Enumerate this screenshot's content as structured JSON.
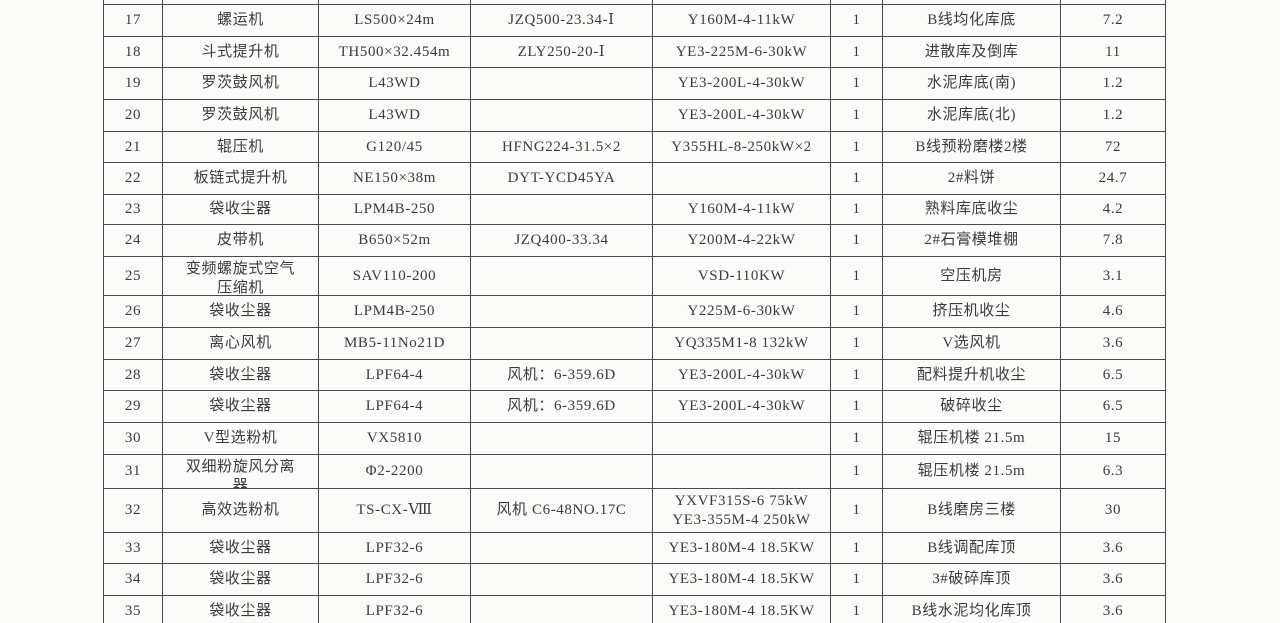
{
  "page": {
    "background": "#fbfbf9",
    "border_color": "#4a4a4a",
    "text_color": "#3b3b3b"
  },
  "table": {
    "cell_keys": [
      "seq",
      "name",
      "model",
      "reducer",
      "motor",
      "qty",
      "location",
      "power"
    ],
    "rows": [
      {
        "seq": "17",
        "name": "螺运机",
        "model": "LS500×24m",
        "reducer": "JZQ500-23.34-Ⅰ",
        "motor": "Y160M-4-11kW",
        "qty": "1",
        "location": "B线均化库底",
        "power": "7.2"
      },
      {
        "seq": "18",
        "name": "斗式提升机",
        "model": "TH500×32.454m",
        "reducer": "ZLY250-20-Ⅰ",
        "motor": "YE3-225M-6-30kW",
        "qty": "1",
        "location": "进散库及倒库",
        "power": "11"
      },
      {
        "seq": "19",
        "name": "罗茨鼓风机",
        "model": "L43WD",
        "reducer": "",
        "motor": "YE3-200L-4-30kW",
        "qty": "1",
        "location": "水泥库底(南)",
        "power": "1.2"
      },
      {
        "seq": "20",
        "name": "罗茨鼓风机",
        "model": "L43WD",
        "reducer": "",
        "motor": "YE3-200L-4-30kW",
        "qty": "1",
        "location": "水泥库底(北)",
        "power": "1.2"
      },
      {
        "seq": "21",
        "name": "辊压机",
        "model": "G120/45",
        "reducer": "HFNG224-31.5×2",
        "motor": "Y355HL-8-250kW×2",
        "qty": "1",
        "location": "B线预粉磨楼2楼",
        "power": "72"
      },
      {
        "seq": "22",
        "name": "板链式提升机",
        "model": "NE150×38m",
        "reducer": "DYT-YCD45YA",
        "motor": "",
        "qty": "1",
        "location": "2#料饼",
        "power": "24.7"
      },
      {
        "seq": "23",
        "name": "袋收尘器",
        "model": "LPM4B-250",
        "reducer": "",
        "motor": "Y160M-4-11kW",
        "qty": "1",
        "location": "熟料库底收尘",
        "power": "4.2"
      },
      {
        "seq": "24",
        "name": "皮带机",
        "model": "B650×52m",
        "reducer": "JZQ400-33.34",
        "motor": "Y200M-4-22kW",
        "qty": "1",
        "location": "2#石膏模堆棚",
        "power": "7.8"
      },
      {
        "seq": "25",
        "name": [
          "变频螺旋式空气",
          "压缩机"
        ],
        "model": "SAV110-200",
        "reducer": "",
        "motor": "VSD-110KW",
        "qty": "1",
        "location": "空压机房",
        "power": "3.1"
      },
      {
        "seq": "26",
        "name": "袋收尘器",
        "model": "LPM4B-250",
        "reducer": "",
        "motor": "Y225M-6-30kW",
        "qty": "1",
        "location": "挤压机收尘",
        "power": "4.6"
      },
      {
        "seq": "27",
        "name": "离心风机",
        "model": "MB5-11No21D",
        "reducer": "",
        "motor": "YQ335M1-8 132kW",
        "qty": "1",
        "location": "V选风机",
        "power": "3.6"
      },
      {
        "seq": "28",
        "name": "袋收尘器",
        "model": "LPF64-4",
        "reducer": "风机：6-359.6D",
        "motor": "YE3-200L-4-30kW",
        "qty": "1",
        "location": "配料提升机收尘",
        "power": "6.5"
      },
      {
        "seq": "29",
        "name": "袋收尘器",
        "model": "LPF64-4",
        "reducer": "风机：6-359.6D",
        "motor": "YE3-200L-4-30kW",
        "qty": "1",
        "location": "破碎收尘",
        "power": "6.5"
      },
      {
        "seq": "30",
        "name": "V型选粉机",
        "model": "VX5810",
        "reducer": "",
        "motor": "",
        "qty": "1",
        "location": "辊压机楼 21.5m",
        "power": "15"
      },
      {
        "seq": "31",
        "name": [
          "双细粉旋风分离",
          "器"
        ],
        "model": "Φ2-2200",
        "reducer": "",
        "motor": "",
        "qty": "1",
        "location": "辊压机楼 21.5m",
        "power": "6.3"
      },
      {
        "seq": "32",
        "name": "高效选粉机",
        "model": "TS-CX-Ⅷ",
        "reducer": "风机 C6-48NO.17C",
        "motor": [
          "YXVF315S-6 75kW",
          "YE3-355M-4 250kW"
        ],
        "qty": "1",
        "location": "B线磨房三楼",
        "power": "30"
      },
      {
        "seq": "33",
        "name": "袋收尘器",
        "model": "LPF32-6",
        "reducer": "",
        "motor": "YE3-180M-4 18.5KW",
        "qty": "1",
        "location": "B线调配库顶",
        "power": "3.6"
      },
      {
        "seq": "34",
        "name": "袋收尘器",
        "model": "LPF32-6",
        "reducer": "",
        "motor": "YE3-180M-4 18.5KW",
        "qty": "1",
        "location": "3#破碎库顶",
        "power": "3.6"
      },
      {
        "seq": "35",
        "name": "袋收尘器",
        "model": "LPF32-6",
        "reducer": "",
        "motor": "YE3-180M-4 18.5KW",
        "qty": "1",
        "location": "B线水泥均化库顶",
        "power": "3.6"
      }
    ]
  }
}
